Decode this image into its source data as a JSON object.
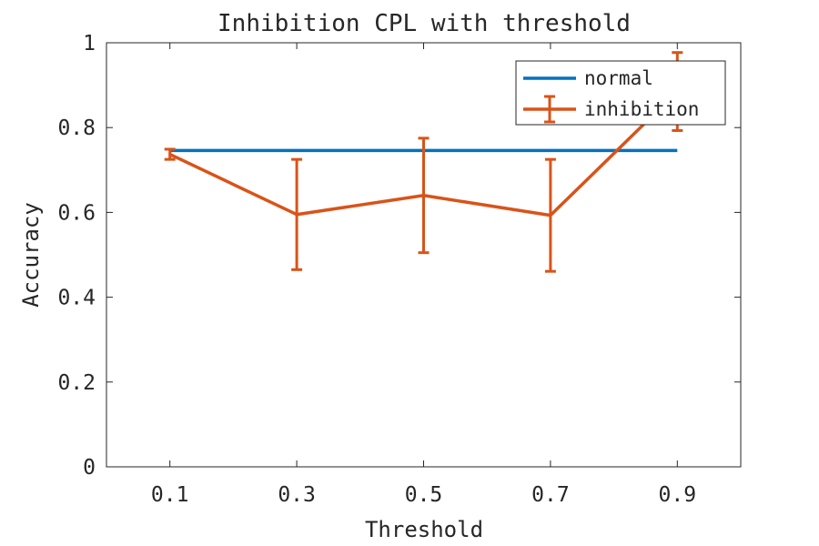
{
  "chart_data": {
    "type": "line",
    "title": "Inhibition CPL with threshold",
    "xlabel": "Threshold",
    "ylabel": "Accuracy",
    "x": [
      0.1,
      0.3,
      0.5,
      0.7,
      0.9
    ],
    "x_tick_labels": [
      "0.1",
      "0.3",
      "0.5",
      "0.7",
      "0.9"
    ],
    "xlim": [
      0.0,
      1.0
    ],
    "ylim": [
      0,
      1
    ],
    "y_ticks": [
      0,
      0.2,
      0.4,
      0.6,
      0.8,
      1
    ],
    "y_tick_labels": [
      "0",
      "0.2",
      "0.4",
      "0.6",
      "0.8",
      "1"
    ],
    "grid": false,
    "legend_position": "top-right",
    "series": [
      {
        "name": "normal",
        "color": "#0072BD",
        "values": [
          0.746,
          0.746,
          0.746,
          0.746,
          0.746
        ]
      },
      {
        "name": "inhibition",
        "color": "#D95319",
        "values": [
          0.737,
          0.595,
          0.64,
          0.593,
          0.885
        ],
        "error": [
          0.012,
          0.13,
          0.135,
          0.132,
          0.092
        ]
      }
    ]
  }
}
